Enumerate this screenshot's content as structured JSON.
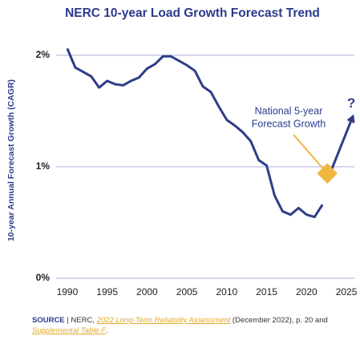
{
  "chart_data": {
    "type": "line",
    "title": "NERC 10-year Load Growth Forecast Trend",
    "y_label": "10-year Annual Forecast Growth (CAGR)",
    "xlim": [
      1988.6,
      2026
    ],
    "xticks": [
      1990,
      1995,
      2000,
      2005,
      2010,
      2015,
      2020,
      2025
    ],
    "ylim": [
      0,
      2.15
    ],
    "yticks": [
      {
        "value": 0,
        "label": "0%"
      },
      {
        "value": 1,
        "label": "1%"
      },
      {
        "value": 2,
        "label": "2%"
      }
    ],
    "grid": true,
    "series": [
      {
        "color": "#2e3d87",
        "x": [
          1990,
          1991,
          1992,
          1993,
          1994,
          1995,
          1996,
          1997,
          1998,
          1999,
          2000,
          2001,
          2002,
          2003,
          2004,
          2005,
          2006,
          2007,
          2008,
          2009,
          2010,
          2011,
          2012,
          2013,
          2014,
          2015,
          2016,
          2017,
          2018,
          2019,
          2020,
          2021,
          2022
        ],
        "values": [
          2.06,
          1.89,
          1.85,
          1.81,
          1.71,
          1.77,
          1.74,
          1.73,
          1.77,
          1.8,
          1.88,
          1.92,
          1.99,
          1.99,
          1.95,
          1.91,
          1.86,
          1.72,
          1.67,
          1.54,
          1.42,
          1.37,
          1.31,
          1.23,
          1.06,
          1.01,
          0.74,
          0.6,
          0.57,
          0.63,
          0.57,
          0.55,
          0.66
        ]
      },
      {
        "color": "#2e3d87",
        "arrow": true,
        "label": "?",
        "x": [
          2023,
          2025.8
        ],
        "values": [
          0.95,
          1.45
        ]
      }
    ],
    "annotation": {
      "lines": [
        "National 5-year",
        "Forecast Growth"
      ],
      "x": 2022.6,
      "value": 0.94,
      "color": "#f0b63e"
    },
    "source": {
      "label": "SOURCE",
      "separator": "|",
      "parts": [
        {
          "text": "NERC, "
        },
        {
          "text": "2022 Long-Term Reliability Assessment",
          "italic": true
        },
        {
          "text": " (December 2022), p. 20 and"
        },
        {
          "text": "Supplemental Table F",
          "italic": true,
          "newline": true
        },
        {
          "text": "."
        }
      ]
    }
  }
}
